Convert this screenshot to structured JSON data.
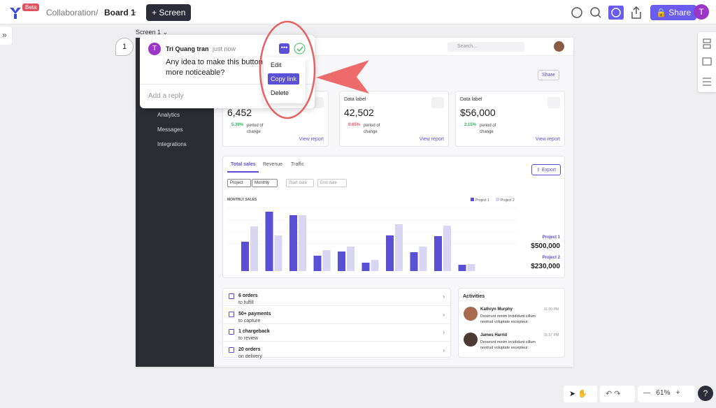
{
  "toolbar": {
    "badge": "Beta",
    "breadcrumb": "Collaboration",
    "separator": "/",
    "board": "Board 1",
    "screen_button": "Screen",
    "share_button": "Share",
    "avatar": "T"
  },
  "frame_label": "Screen 1",
  "comment": {
    "pin": "1",
    "avatar": "T",
    "author": "Tri Quang tran",
    "time": "just now",
    "text": "Any idea to make this button more noticeable?",
    "reply_placeholder": "Add a reply",
    "menu": [
      "Edit",
      "Copy link",
      "Delete"
    ]
  },
  "mockup": {
    "search": "Search...",
    "share": "Share",
    "sidebar": [
      "Analytics",
      "Messages",
      "Integrations"
    ],
    "cards": [
      {
        "label": "Data label",
        "value": "6,452",
        "change": "5.39%",
        "change_text": "period of change",
        "link": "View report"
      },
      {
        "label": "Data label",
        "value": "42,502",
        "change": "0.65%",
        "change_text": "period of change",
        "link": "View report"
      },
      {
        "label": "Data label",
        "value": "$56,000",
        "change": "2.15%",
        "change_text": "period of change",
        "link": "View report"
      }
    ],
    "tabs": [
      "Total sales",
      "Revenue",
      "Traffic"
    ],
    "export": "Export",
    "filters": [
      "Project",
      "Monthly",
      "Start date",
      "End date"
    ],
    "chart": {
      "title": "MONTHLY SALES",
      "series": [
        {
          "name": "Project 1",
          "color": "#5b4fd6",
          "values": [
            42,
            85,
            80,
            22,
            28,
            12,
            51,
            27,
            50,
            9
          ]
        },
        {
          "name": "Project 2",
          "color": "#d9d6f3",
          "values": [
            64,
            51,
            80,
            30,
            35,
            16,
            67,
            35,
            65,
            10
          ]
        }
      ],
      "totals": [
        "$500,000",
        "$230,000"
      ]
    },
    "orders": [
      [
        "6 orders",
        "to fulfill"
      ],
      [
        "50+ payments",
        "to capture"
      ],
      [
        "1 chargeback",
        "to review"
      ],
      [
        "20 orders",
        "on delivery"
      ]
    ],
    "activities": {
      "title": "Activities",
      "items": [
        {
          "name": "Kathryn Murphy",
          "time": "11:00 PM",
          "text": "Deserunt minim incididunt cillum nostrud voluptate excepteur."
        },
        {
          "name": "James Harrid",
          "time": "11:37 PM",
          "text": "Deserunt minim incididunt cillum nostrud voluptate excepteur."
        }
      ]
    }
  },
  "bottom": {
    "zoom": "61%",
    "help": "?"
  }
}
